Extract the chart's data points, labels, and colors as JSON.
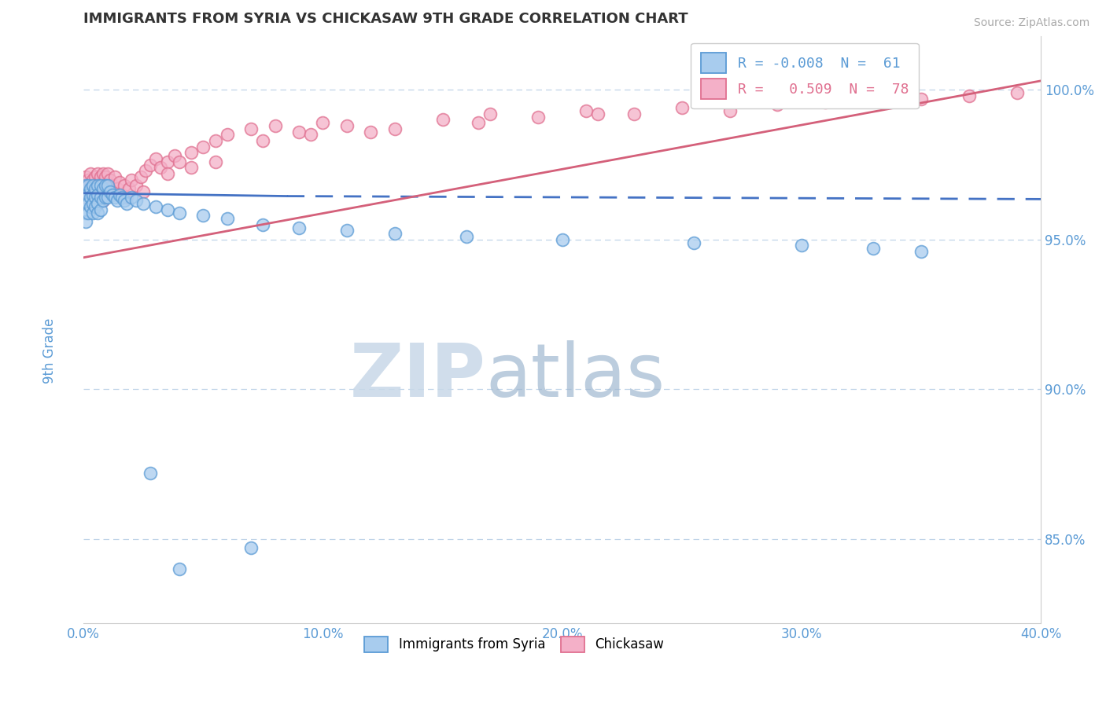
{
  "title": "IMMIGRANTS FROM SYRIA VS CHICKASAW 9TH GRADE CORRELATION CHART",
  "source_text": "Source: ZipAtlas.com",
  "ylabel": "9th Grade",
  "xmin": 0.0,
  "xmax": 0.4,
  "ymin": 0.822,
  "ymax": 1.018,
  "yticks": [
    0.85,
    0.9,
    0.95,
    1.0
  ],
  "ytick_labels": [
    "85.0%",
    "90.0%",
    "95.0%",
    "100.0%"
  ],
  "xticks": [
    0.0,
    0.1,
    0.2,
    0.3,
    0.4
  ],
  "xtick_labels": [
    "0.0%",
    "10.0%",
    "20.0%",
    "30.0%",
    "40.0%"
  ],
  "blue_color_face": "#a8ccee",
  "blue_color_edge": "#5b9bd5",
  "pink_color_face": "#f4b0c8",
  "pink_color_edge": "#e07090",
  "blue_line_color": "#4472c4",
  "pink_line_color": "#d4607a",
  "ylabel_color": "#5b9bd5",
  "tick_color": "#5b9bd5",
  "watermark_zip": "ZIP",
  "watermark_atlas": "atlas",
  "legend_label_blue": "R = -0.008  N =  61",
  "legend_label_pink": "R =   0.509  N =  78",
  "legend_color_blue": "#e07090",
  "legend_color_pink": "#e07090",
  "bottom_legend_blue": "Immigrants from Syria",
  "bottom_legend_pink": "Chickasaw",
  "blue_line_x": [
    0.0,
    0.085,
    0.4
  ],
  "blue_line_y": [
    0.9655,
    0.9645,
    0.9635
  ],
  "pink_line_x": [
    0.0,
    0.4
  ],
  "pink_line_y": [
    0.944,
    1.003
  ],
  "blue_pts_x": [
    0.001,
    0.001,
    0.001,
    0.001,
    0.001,
    0.002,
    0.002,
    0.002,
    0.002,
    0.003,
    0.003,
    0.003,
    0.004,
    0.004,
    0.004,
    0.004,
    0.005,
    0.005,
    0.005,
    0.006,
    0.006,
    0.006,
    0.006,
    0.007,
    0.007,
    0.007,
    0.008,
    0.008,
    0.009,
    0.009,
    0.01,
    0.01,
    0.011,
    0.012,
    0.013,
    0.014,
    0.015,
    0.016,
    0.017,
    0.018,
    0.02,
    0.022,
    0.025,
    0.03,
    0.035,
    0.04,
    0.05,
    0.06,
    0.075,
    0.09,
    0.11,
    0.13,
    0.16,
    0.2,
    0.255,
    0.3,
    0.33,
    0.35,
    0.028,
    0.04,
    0.07
  ],
  "blue_pts_y": [
    0.968,
    0.965,
    0.962,
    0.959,
    0.956,
    0.968,
    0.965,
    0.962,
    0.959,
    0.967,
    0.964,
    0.961,
    0.968,
    0.965,
    0.962,
    0.959,
    0.967,
    0.964,
    0.961,
    0.968,
    0.965,
    0.962,
    0.959,
    0.968,
    0.964,
    0.96,
    0.967,
    0.963,
    0.968,
    0.964,
    0.968,
    0.964,
    0.966,
    0.965,
    0.964,
    0.963,
    0.965,
    0.964,
    0.963,
    0.962,
    0.964,
    0.963,
    0.962,
    0.961,
    0.96,
    0.959,
    0.958,
    0.957,
    0.955,
    0.954,
    0.953,
    0.952,
    0.951,
    0.95,
    0.949,
    0.948,
    0.947,
    0.946,
    0.872,
    0.84,
    0.847
  ],
  "pink_pts_x": [
    0.001,
    0.001,
    0.001,
    0.002,
    0.002,
    0.003,
    0.003,
    0.003,
    0.004,
    0.004,
    0.004,
    0.005,
    0.005,
    0.005,
    0.006,
    0.006,
    0.006,
    0.007,
    0.007,
    0.008,
    0.008,
    0.008,
    0.009,
    0.009,
    0.01,
    0.01,
    0.011,
    0.012,
    0.013,
    0.014,
    0.015,
    0.016,
    0.017,
    0.018,
    0.019,
    0.02,
    0.022,
    0.024,
    0.026,
    0.028,
    0.03,
    0.032,
    0.035,
    0.038,
    0.04,
    0.045,
    0.05,
    0.055,
    0.06,
    0.07,
    0.08,
    0.09,
    0.1,
    0.11,
    0.13,
    0.15,
    0.17,
    0.19,
    0.21,
    0.23,
    0.25,
    0.27,
    0.29,
    0.31,
    0.33,
    0.35,
    0.37,
    0.39,
    0.025,
    0.035,
    0.045,
    0.055,
    0.075,
    0.095,
    0.12,
    0.165,
    0.215,
    0.34
  ],
  "pink_pts_y": [
    0.971,
    0.968,
    0.964,
    0.97,
    0.965,
    0.972,
    0.968,
    0.964,
    0.97,
    0.966,
    0.962,
    0.971,
    0.967,
    0.963,
    0.972,
    0.968,
    0.964,
    0.971,
    0.966,
    0.972,
    0.968,
    0.963,
    0.971,
    0.965,
    0.972,
    0.967,
    0.97,
    0.968,
    0.971,
    0.967,
    0.969,
    0.965,
    0.968,
    0.964,
    0.967,
    0.97,
    0.968,
    0.971,
    0.973,
    0.975,
    0.977,
    0.974,
    0.976,
    0.978,
    0.976,
    0.979,
    0.981,
    0.983,
    0.985,
    0.987,
    0.988,
    0.986,
    0.989,
    0.988,
    0.987,
    0.99,
    0.992,
    0.991,
    0.993,
    0.992,
    0.994,
    0.993,
    0.995,
    0.996,
    0.997,
    0.997,
    0.998,
    0.999,
    0.966,
    0.972,
    0.974,
    0.976,
    0.983,
    0.985,
    0.986,
    0.989,
    0.992,
    0.997
  ]
}
